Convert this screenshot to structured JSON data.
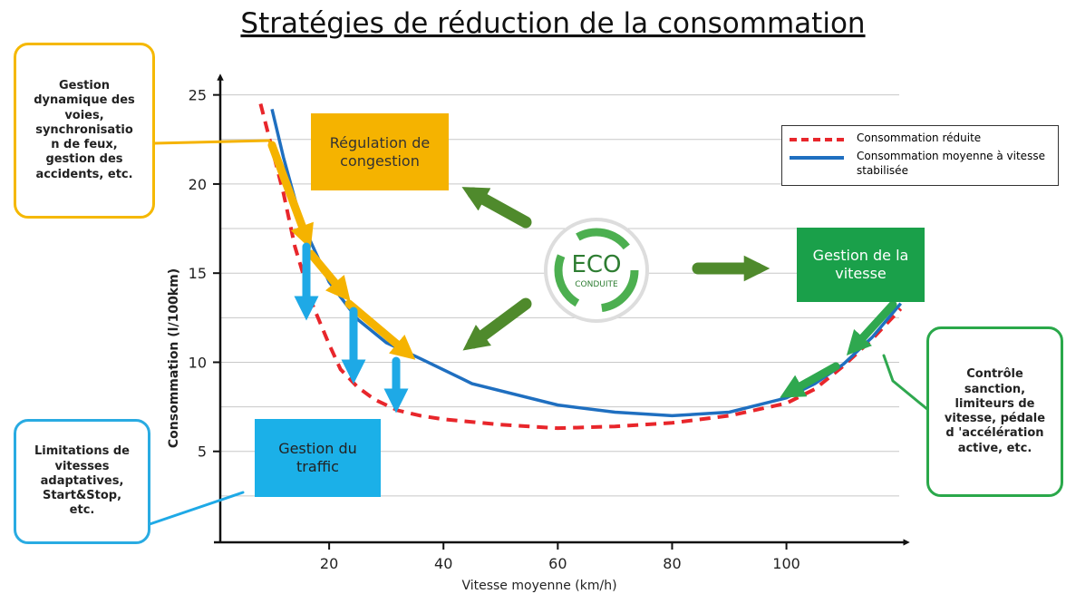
{
  "chart_data": {
    "type": "line",
    "title": "Stratégies de réduction de la consommation",
    "x_label": "Vitesse moyenne (km/h)",
    "y_label": "Consommation (l/100km)",
    "xlim": [
      0,
      121
    ],
    "ylim": [
      0,
      26
    ],
    "xticks": [
      20,
      40,
      60,
      80,
      100
    ],
    "yticks": [
      5,
      10,
      15,
      20,
      25
    ],
    "ygrid": [
      2.5,
      5,
      7.5,
      10,
      12.5,
      15,
      17.5,
      20,
      22.5,
      25
    ],
    "grid": true,
    "legend": "top-right",
    "series": [
      {
        "name": "Consommation réduite",
        "color": "#e8262b",
        "dashed": true,
        "x": [
          8,
          10,
          12,
          14,
          17,
          20,
          22,
          25,
          28,
          32,
          36,
          40,
          50,
          60,
          70,
          80,
          90,
          100,
          105,
          110,
          115,
          120
        ],
        "values": [
          24.5,
          22,
          19.5,
          16.5,
          13.3,
          11,
          9.6,
          8.6,
          7.9,
          7.3,
          7,
          6.8,
          6.5,
          6.3,
          6.4,
          6.6,
          7,
          7.7,
          8.5,
          9.8,
          11.3,
          13
        ]
      },
      {
        "name": "Consommation moyenne à vitesse stabilisée",
        "color": "#1f6fc0",
        "dashed": false,
        "x": [
          10,
          12,
          15,
          20,
          25,
          30,
          36,
          45,
          60,
          70,
          80,
          90,
          100,
          105,
          110,
          115,
          120
        ],
        "values": [
          24.2,
          21.5,
          18,
          14.5,
          12.4,
          11.1,
          10.2,
          8.8,
          7.6,
          7.2,
          7,
          7.2,
          8,
          8.8,
          9.9,
          11.4,
          13.3
        ]
      }
    ]
  },
  "annotations": {
    "infrastructure": [
      "Gestion",
      "dynamique des",
      "voies,",
      "synchronisatio",
      "n de feux,",
      "gestion des",
      "accidents, etc."
    ],
    "congestion": [
      "Régulation de",
      "congestion"
    ],
    "speed": [
      "Gestion de la",
      "vitesse"
    ],
    "enforcement": [
      "Contrôle",
      "sanction,",
      "limiteurs de",
      "vitesse, pédale",
      "d 'accélération",
      "active, etc."
    ],
    "traffic": [
      "Gestion du",
      "traffic"
    ],
    "limits": [
      "Limitations de",
      "vitesses",
      "adaptatives,",
      "Start&Stop,",
      "etc."
    ],
    "logo": [
      "ECO",
      "CONDUITE"
    ]
  }
}
